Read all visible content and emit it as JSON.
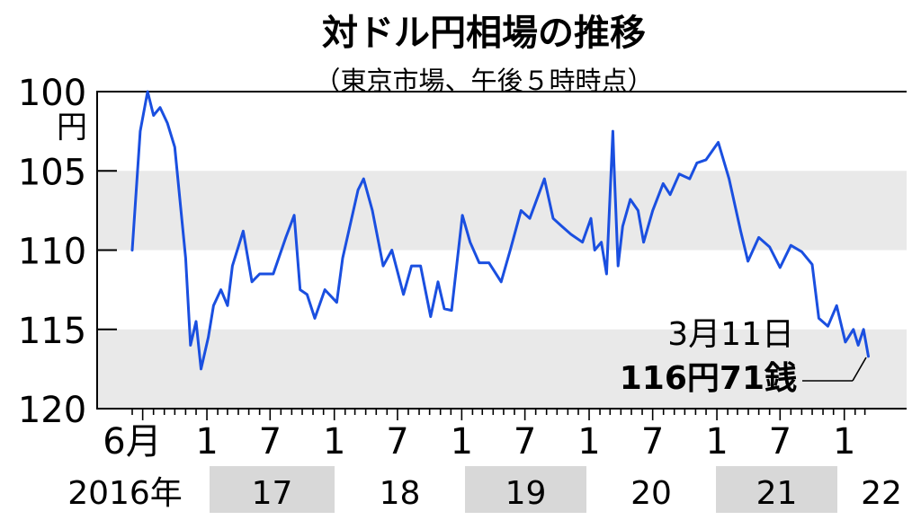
{
  "chart_data": {
    "type": "line",
    "title": "対ドル円相場の推移",
    "subtitle": "（東京市場、午後５時時点）",
    "y_unit": "円",
    "y_ticks": [
      "100",
      "105",
      "110",
      "115",
      "120"
    ],
    "ylim": [
      100,
      120
    ],
    "y_inverted": true,
    "x_tick_labels": [
      "6月",
      "1",
      "7",
      "1",
      "7",
      "1",
      "7",
      "1",
      "7",
      "1",
      "7",
      "1"
    ],
    "x_tick_dates": [
      "2016-06",
      "2017-01",
      "2017-07",
      "2018-01",
      "2018-07",
      "2019-01",
      "2019-07",
      "2020-01",
      "2020-07",
      "2021-01",
      "2021-07",
      "2022-01"
    ],
    "year_labels": [
      "2016年",
      "17",
      "18",
      "19",
      "20",
      "21",
      "22"
    ],
    "line_color": "#1a4fe0",
    "band_color": "#e9e9e9",
    "series": [
      {
        "x": [
          "2016-06-01",
          "2016-06-24",
          "2016-07-15",
          "2016-08-01",
          "2016-08-20",
          "2016-09-10",
          "2016-10-01",
          "2016-11-01",
          "2016-11-15",
          "2016-12-01",
          "2016-12-15",
          "2017-01-05",
          "2017-01-20",
          "2017-02-10",
          "2017-03-01",
          "2017-03-15",
          "2017-04-15",
          "2017-05-10",
          "2017-06-01",
          "2017-07-10",
          "2017-08-15",
          "2017-09-08",
          "2017-09-25",
          "2017-10-15",
          "2017-11-06",
          "2017-12-05",
          "2018-01-08",
          "2018-01-25",
          "2018-03-10",
          "2018-03-26",
          "2018-04-20",
          "2018-05-21",
          "2018-06-15",
          "2018-07-18",
          "2018-08-10",
          "2018-09-05",
          "2018-10-04",
          "2018-10-25",
          "2018-11-12",
          "2018-12-03",
          "2018-12-20",
          "2019-01-03",
          "2019-01-25",
          "2019-02-20",
          "2019-03-20",
          "2019-04-24",
          "2019-05-20",
          "2019-06-20",
          "2019-07-15",
          "2019-08-26",
          "2019-09-20",
          "2019-10-15",
          "2019-11-10",
          "2019-12-13",
          "2020-01-06",
          "2020-01-17",
          "2020-02-05",
          "2020-02-20",
          "2020-03-09",
          "2020-03-12",
          "2020-03-24",
          "2020-04-06",
          "2020-04-28",
          "2020-05-20",
          "2020-06-05",
          "2020-07-01",
          "2020-07-31",
          "2020-08-20",
          "2020-09-15",
          "2020-10-15",
          "2020-11-05",
          "2020-12-01",
          "2021-01-05",
          "2021-02-05",
          "2021-03-10",
          "2021-03-31",
          "2021-05-01",
          "2021-06-01",
          "2021-07-01",
          "2021-08-01",
          "2021-09-01",
          "2021-10-01",
          "2021-10-20",
          "2021-11-15",
          "2021-12-10",
          "2022-01-04",
          "2022-01-27",
          "2022-02-10",
          "2022-02-25",
          "2022-03-11"
        ],
        "y": [
          110.0,
          102.5,
          100.0,
          101.5,
          101.0,
          102.0,
          103.5,
          110.5,
          116.0,
          114.5,
          117.5,
          115.5,
          113.5,
          112.5,
          113.5,
          111.0,
          108.8,
          112.0,
          111.5,
          111.5,
          109.2,
          107.8,
          112.5,
          112.8,
          114.3,
          112.5,
          113.3,
          110.5,
          106.2,
          105.5,
          107.5,
          111.0,
          110.0,
          112.8,
          111.0,
          111.0,
          114.2,
          112.0,
          113.7,
          113.8,
          110.5,
          107.8,
          109.5,
          110.8,
          110.8,
          112.0,
          110.0,
          107.5,
          108.0,
          105.5,
          108.0,
          108.5,
          109.0,
          109.5,
          108.0,
          110.0,
          109.5,
          111.5,
          102.5,
          104.5,
          111.0,
          108.5,
          106.8,
          107.5,
          109.5,
          107.5,
          105.8,
          106.5,
          105.2,
          105.5,
          104.5,
          104.3,
          103.2,
          105.5,
          108.8,
          110.7,
          109.2,
          109.8,
          111.1,
          109.7,
          110.1,
          110.9,
          114.3,
          114.8,
          113.5,
          115.8,
          115.0,
          116.0,
          115.0,
          116.7
        ]
      }
    ],
    "annotation": {
      "date_label": "3月11日",
      "value_label": "116円71銭"
    }
  }
}
